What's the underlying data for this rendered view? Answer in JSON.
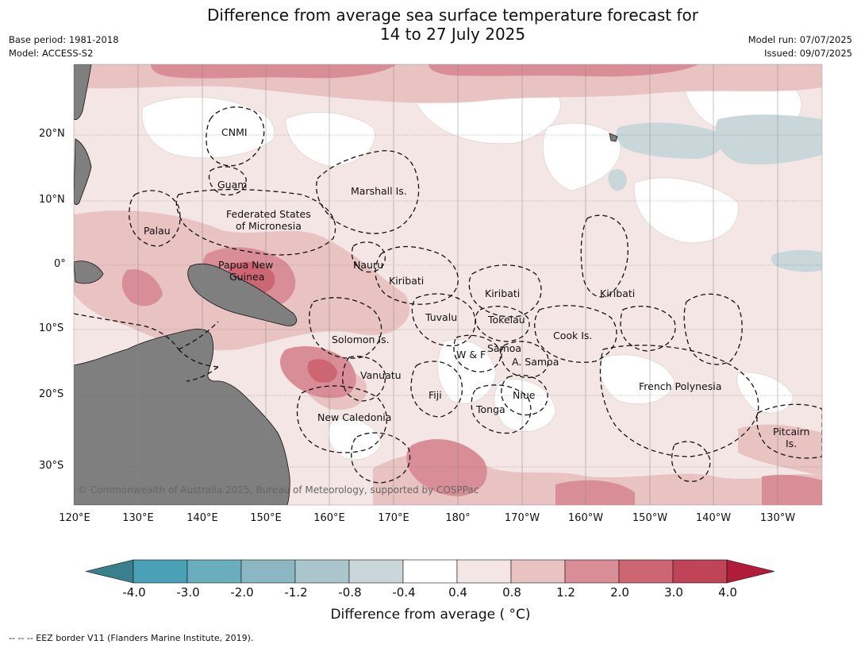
{
  "title": {
    "line1": "Difference from average sea surface temperature forecast for",
    "line2": "14 to 27 July 2025"
  },
  "meta": {
    "base_period": "Base period: 1981-2018",
    "model": "Model: ACCESS-S2",
    "model_run": "Model run: 07/07/2025",
    "issued": "Issued: 09/07/2025"
  },
  "lat_labels": [
    "20°N",
    "10°N",
    "0°",
    "10°S",
    "20°S",
    "30°S"
  ],
  "lon_labels": [
    "120°E",
    "130°E",
    "140°E",
    "150°E",
    "160°E",
    "170°E",
    "180°",
    "170°W",
    "160°W",
    "150°W",
    "140°W",
    "130°W"
  ],
  "places": [
    "CNMI",
    "Guam",
    "Marshall Is.",
    "Federated States",
    "of Micronesia",
    "Palau",
    "Papua New",
    "Guinea",
    "Nauru",
    "Kiribati",
    "Kiribati",
    "Kiribati",
    "Tuvalu",
    "Tokelau",
    "Cook Is.",
    "Solomon Is.",
    "W & F",
    "Samoa",
    "A. Samoa",
    "Vanuatu",
    "Fiji",
    "Niue",
    "French Polynesia",
    "Tonga",
    "New Caledonia",
    "Pitcairn",
    "Is."
  ],
  "copyright": "© Commonwealth of Australia 2025, Bureau of Meteorology, supported by COSPPac",
  "colorbar": {
    "ticks": [
      "-4.0",
      "-3.0",
      "-2.0",
      "-1.2",
      "-0.8",
      "-0.4",
      "0.4",
      "0.8",
      "1.2",
      "2.0",
      "3.0",
      "4.0"
    ],
    "colors": [
      "#3a7f8c",
      "#4aa0b5",
      "#6aaebe",
      "#8bb7c3",
      "#a8c6cb",
      "#c9d7da",
      "#ffffff",
      "#f4e6e5",
      "#e8c3c2",
      "#d98e97",
      "#cd6672",
      "#c04457",
      "#b01c3a"
    ],
    "title": "Difference from average ( °C)"
  },
  "footnote": "--  --  -- EEZ border V11 (Flanders Marine Institute, 2019)."
}
